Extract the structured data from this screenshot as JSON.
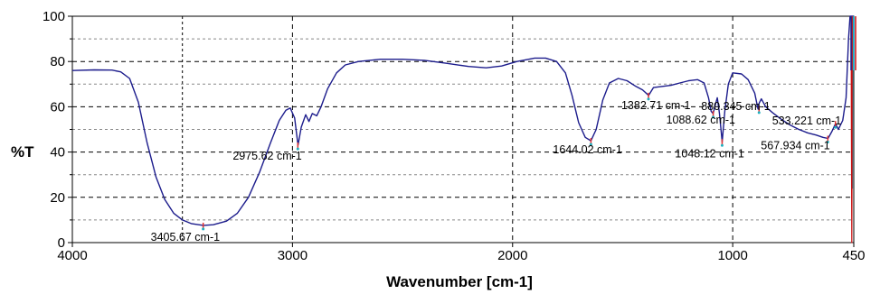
{
  "chart_data": {
    "type": "line",
    "title": "",
    "xlabel": "Wavenumber [cm-1]",
    "ylabel": "%T",
    "xlim": [
      4000,
      450
    ],
    "ylim": [
      0,
      100
    ],
    "x_reversed": true,
    "grid": true,
    "x_ticks": [
      4000,
      3000,
      2000,
      1000,
      450
    ],
    "y_ticks": [
      0,
      20,
      40,
      60,
      80,
      100
    ],
    "series": [
      {
        "color": "#1c1c8c",
        "points": [
          [
            4000,
            76
          ],
          [
            3900,
            76.3
          ],
          [
            3820,
            76.2
          ],
          [
            3780,
            75.4
          ],
          [
            3740,
            72.5
          ],
          [
            3700,
            62
          ],
          [
            3660,
            44
          ],
          [
            3620,
            29
          ],
          [
            3580,
            19
          ],
          [
            3540,
            13
          ],
          [
            3500,
            10
          ],
          [
            3460,
            8.4
          ],
          [
            3405,
            7.6
          ],
          [
            3360,
            7.9
          ],
          [
            3300,
            9.5
          ],
          [
            3250,
            13
          ],
          [
            3200,
            20
          ],
          [
            3150,
            31
          ],
          [
            3100,
            44
          ],
          [
            3060,
            54
          ],
          [
            3030,
            58.5
          ],
          [
            3010,
            59.5
          ],
          [
            2990,
            55
          ],
          [
            2975,
            43
          ],
          [
            2960,
            51
          ],
          [
            2940,
            56.5
          ],
          [
            2925,
            53.5
          ],
          [
            2910,
            57
          ],
          [
            2890,
            56
          ],
          [
            2870,
            60
          ],
          [
            2840,
            68
          ],
          [
            2800,
            75
          ],
          [
            2760,
            78.5
          ],
          [
            2700,
            80
          ],
          [
            2600,
            81
          ],
          [
            2500,
            81
          ],
          [
            2400,
            80.5
          ],
          [
            2300,
            79.2
          ],
          [
            2200,
            77.8
          ],
          [
            2120,
            77.2
          ],
          [
            2050,
            78
          ],
          [
            1980,
            80
          ],
          [
            1900,
            81.5
          ],
          [
            1850,
            81.5
          ],
          [
            1800,
            80
          ],
          [
            1760,
            75
          ],
          [
            1730,
            65
          ],
          [
            1700,
            53
          ],
          [
            1670,
            46.5
          ],
          [
            1644,
            45
          ],
          [
            1620,
            50
          ],
          [
            1590,
            63
          ],
          [
            1560,
            70.5
          ],
          [
            1520,
            72.5
          ],
          [
            1480,
            71.5
          ],
          [
            1440,
            69
          ],
          [
            1410,
            67.5
          ],
          [
            1382,
            65
          ],
          [
            1360,
            68.5
          ],
          [
            1320,
            69
          ],
          [
            1280,
            69.5
          ],
          [
            1240,
            70.5
          ],
          [
            1200,
            71.5
          ],
          [
            1160,
            72
          ],
          [
            1130,
            70.5
          ],
          [
            1110,
            64
          ],
          [
            1098,
            58
          ],
          [
            1089,
            57
          ],
          [
            1080,
            60.5
          ],
          [
            1070,
            64
          ],
          [
            1060,
            57
          ],
          [
            1048,
            44.5
          ],
          [
            1036,
            58
          ],
          [
            1020,
            70
          ],
          [
            1000,
            75
          ],
          [
            960,
            74.5
          ],
          [
            930,
            72
          ],
          [
            900,
            66
          ],
          [
            885,
            59
          ],
          [
            880,
            61.5
          ],
          [
            870,
            63.5
          ],
          [
            850,
            60
          ],
          [
            820,
            57.5
          ],
          [
            780,
            54.5
          ],
          [
            740,
            52
          ],
          [
            700,
            50
          ],
          [
            660,
            48.5
          ],
          [
            620,
            47.5
          ],
          [
            590,
            46.5
          ],
          [
            567,
            46
          ],
          [
            550,
            49
          ],
          [
            533,
            52.5
          ],
          [
            520,
            50
          ],
          [
            500,
            54
          ],
          [
            485,
            64
          ],
          [
            474,
            90
          ],
          [
            467,
            100
          ],
          [
            460,
            100
          ],
          [
            455,
            100
          ],
          [
            450,
            100
          ]
        ]
      },
      {
        "color": "#00a8c8",
        "points": [
          [
            457,
            100
          ],
          [
            457,
            40
          ],
          [
            456,
            24
          ],
          [
            455,
            100
          ]
        ]
      },
      {
        "color": "#cc1010",
        "points": [
          [
            462,
            100
          ],
          [
            461,
            60
          ],
          [
            459,
            0
          ],
          [
            458,
            30
          ],
          [
            457,
            100
          ]
        ]
      }
    ],
    "annotations": [
      {
        "text": "3405.67 cm-1",
        "x": 3405.67,
        "y": 7.6
      },
      {
        "text": "2975.62 cm-1",
        "x": 2975.62,
        "y": 43
      },
      {
        "text": "1644.02 cm-1",
        "x": 1644.02,
        "y": 45
      },
      {
        "text": "1382.71 cm-1",
        "x": 1382.71,
        "y": 65
      },
      {
        "text": "1088.62 cm-1",
        "x": 1088.62,
        "y": 57
      },
      {
        "text": "1048.12 cm-1",
        "x": 1048.12,
        "y": 44.5
      },
      {
        "text": "880.345 cm-1",
        "x": 880.345,
        "y": 59
      },
      {
        "text": "533.221 cm-1",
        "x": 533.221,
        "y": 52.5
      },
      {
        "text": "567.934 cm-1",
        "x": 567.934,
        "y": 46
      }
    ]
  }
}
